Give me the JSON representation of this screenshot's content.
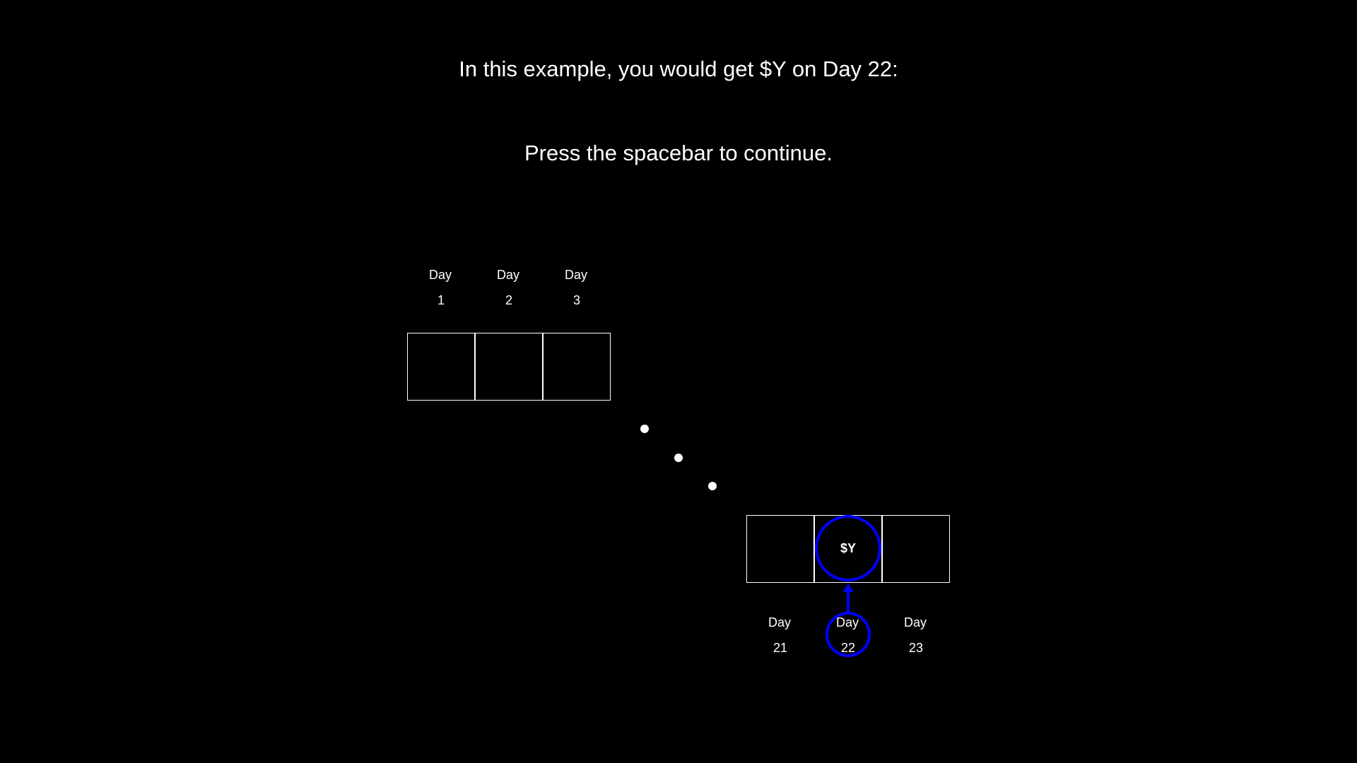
{
  "instructions": {
    "line1": "In this example, you would get $Y on Day 22:",
    "line2": "Press the spacebar to continue."
  },
  "timeline_start": {
    "days": [
      {
        "word": "Day",
        "number": "1"
      },
      {
        "word": "Day",
        "number": "2"
      },
      {
        "word": "Day",
        "number": "3"
      }
    ]
  },
  "timeline_end": {
    "days": [
      {
        "word": "Day",
        "number": "21"
      },
      {
        "word": "Day",
        "number": "22"
      },
      {
        "word": "Day",
        "number": "23"
      }
    ],
    "reward_label": "$Y",
    "highlight_color": "#0000ff"
  },
  "colors": {
    "background": "#000000",
    "foreground": "#ffffff",
    "highlight": "#0000ff"
  }
}
